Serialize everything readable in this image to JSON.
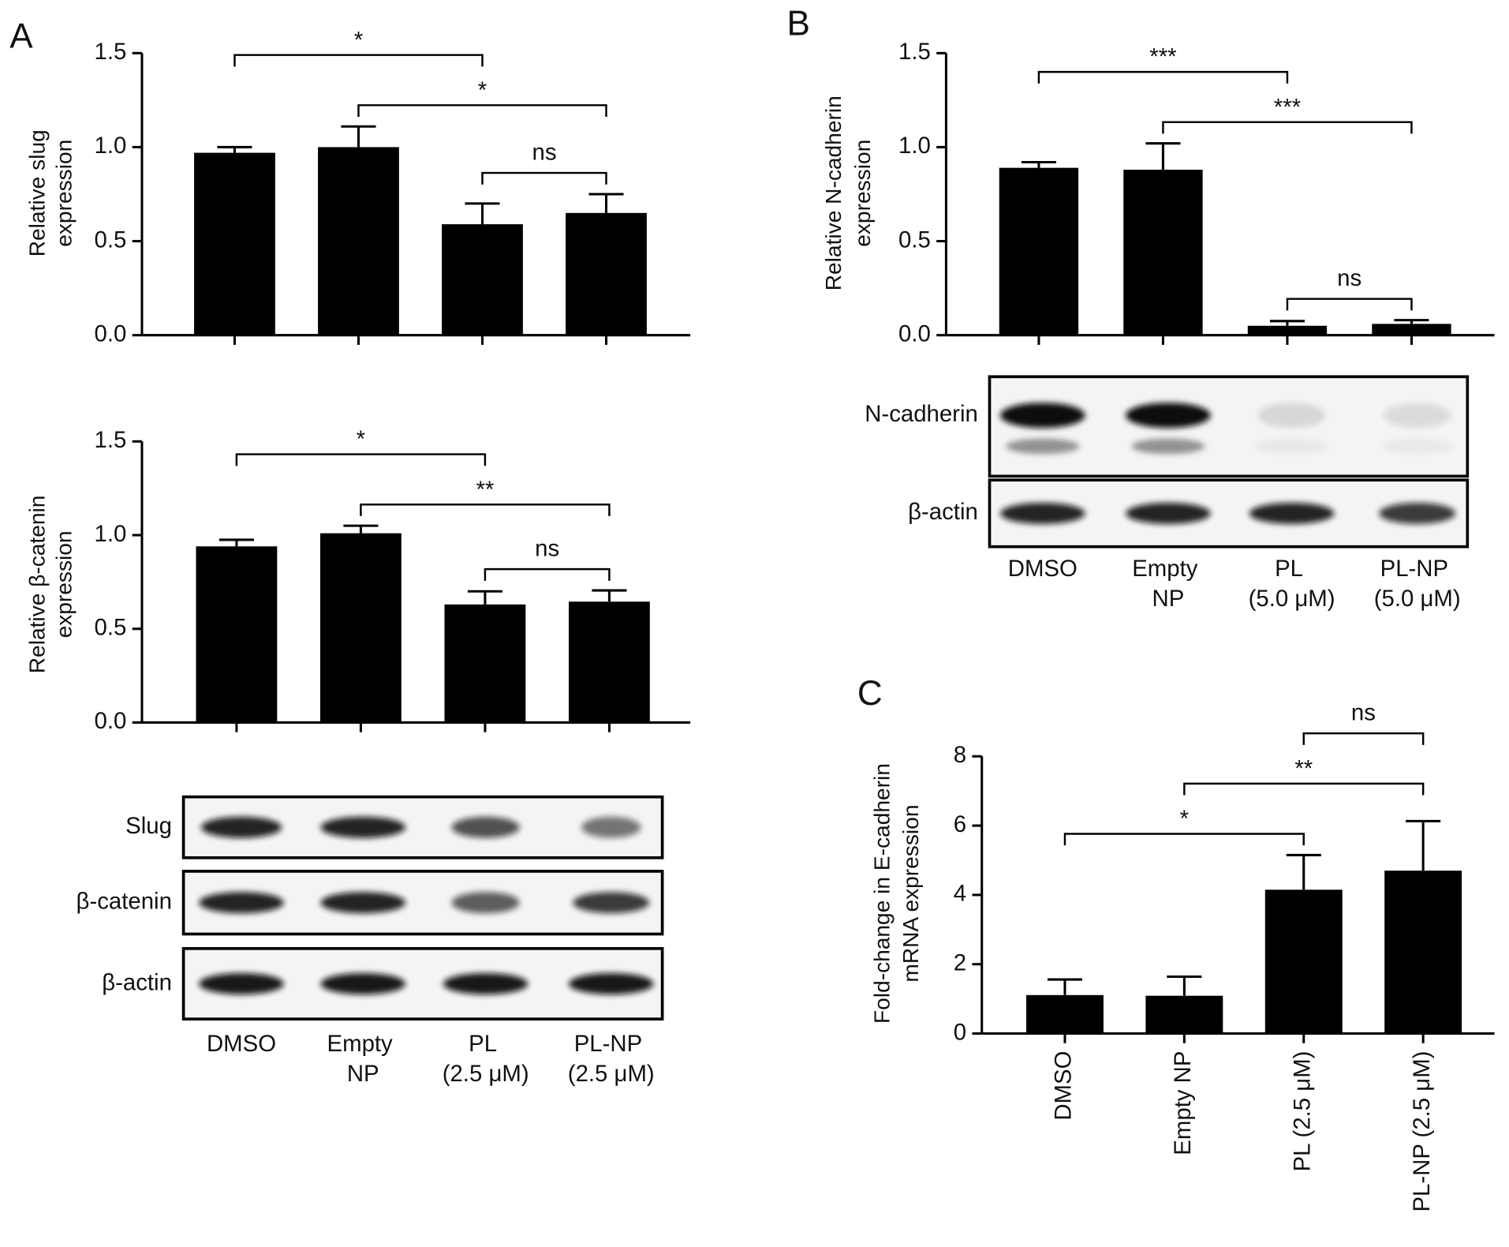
{
  "panel_labels": [
    "A",
    "B",
    "C"
  ],
  "chart_data": [
    {
      "type": "bar",
      "ylabel": [
        "Relative slug",
        "expression"
      ],
      "values": [
        0.97,
        1.0,
        0.59,
        0.65
      ],
      "errors": [
        0.03,
        0.11,
        0.11,
        0.1
      ],
      "color": "#000000",
      "ylim": [
        0,
        1.5
      ],
      "yticks": [
        {
          "value": 0,
          "label": "0.0"
        },
        0.5,
        {
          "value": 1,
          "label": "1.0"
        },
        1.5
      ],
      "brackets": [
        {
          "from": 2,
          "to": 3,
          "label": "ns"
        },
        {
          "from": 1,
          "to": 3,
          "label": "*"
        },
        {
          "from": 0,
          "to": 2,
          "label": "*"
        }
      ]
    },
    {
      "type": "bar",
      "ylabel": [
        "Relative β-catenin",
        "expression"
      ],
      "values": [
        0.94,
        1.01,
        0.63,
        0.645
      ],
      "errors": [
        0.035,
        0.04,
        0.07,
        0.06
      ],
      "color": "#000000",
      "ylim": [
        0,
        1.5
      ],
      "yticks": [
        {
          "value": 0,
          "label": "0.0"
        },
        0.5,
        {
          "value": 1,
          "label": "1.0"
        },
        1.5
      ],
      "brackets": [
        {
          "from": 2,
          "to": 3,
          "label": "ns"
        },
        {
          "from": 1,
          "to": 3,
          "label": "**"
        },
        {
          "from": 0,
          "to": 2,
          "label": "*"
        }
      ]
    },
    {
      "type": "bar",
      "ylabel": [
        "Relative N-cadherin",
        "expression"
      ],
      "values": [
        0.89,
        0.88,
        0.05,
        0.06
      ],
      "errors": [
        0.03,
        0.14,
        0.025,
        0.02
      ],
      "color": "#000000",
      "ylim": [
        0,
        1.5
      ],
      "yticks": [
        {
          "value": 0,
          "label": "0.0"
        },
        0.5,
        {
          "value": 1,
          "label": "1.0"
        },
        1.5
      ],
      "brackets": [
        {
          "from": 2,
          "to": 3,
          "label": "ns"
        },
        {
          "from": 1,
          "to": 3,
          "label": "***"
        },
        {
          "from": 0,
          "to": 2,
          "label": "***"
        }
      ]
    },
    {
      "type": "bar",
      "ylabel": [
        "Fold-change in E-cadherin",
        "mRNA expression"
      ],
      "categories": [
        "DMSO",
        "Empty NP",
        "PL (2.5 μM)",
        "PL-NP (2.5 μM)"
      ],
      "values": [
        1.11,
        1.09,
        4.15,
        4.7
      ],
      "errors": [
        0.45,
        0.55,
        1.0,
        1.43
      ],
      "color": "#000000",
      "ylim": [
        0,
        8
      ],
      "yticks": [
        0,
        2,
        4,
        6,
        8
      ],
      "brackets": [
        {
          "from": 0,
          "to": 2,
          "label": "*"
        },
        {
          "from": 1,
          "to": 3,
          "label": "**"
        },
        {
          "from": 2,
          "to": 3,
          "label": "ns"
        }
      ]
    }
  ],
  "blots": [
    {
      "rows": [
        "Slug",
        "β-catenin",
        "β-actin"
      ],
      "lanes": [
        "DMSO",
        "Empty NP",
        "PL (2.5 μM)",
        "PL-NP (2.5 μM)"
      ]
    },
    {
      "rows": [
        "N-cadherin",
        "β-actin"
      ],
      "lanes": [
        "DMSO",
        "Empty NP",
        "PL (5.0 μM)",
        "PL-NP (5.0 μM)"
      ]
    }
  ]
}
